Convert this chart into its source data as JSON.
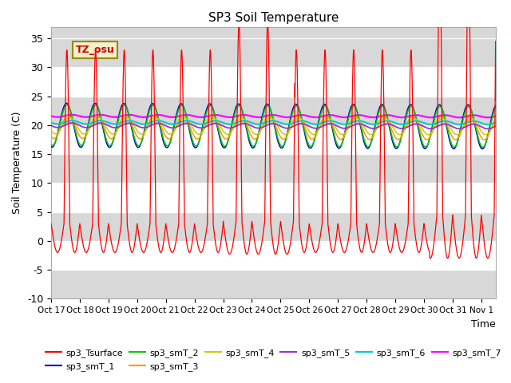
{
  "title": "SP3 Soil Temperature",
  "xlabel": "Time",
  "ylabel": "Soil Temperature (C)",
  "ylim": [
    -10,
    37
  ],
  "yticks": [
    -10,
    -5,
    0,
    5,
    10,
    15,
    20,
    25,
    30,
    35
  ],
  "xtick_labels": [
    "Oct 17",
    "Oct 18",
    "Oct 19",
    "Oct 20",
    "Oct 21",
    "Oct 22",
    "Oct 23",
    "Oct 24",
    "Oct 25",
    "Oct 26",
    "Oct 27",
    "Oct 28",
    "Oct 29",
    "Oct 30",
    "Oct 31",
    "Nov 1"
  ],
  "annotation_text": "TZ_osu",
  "series_colors": {
    "sp3_Tsurface": "#ff0000",
    "sp3_smT_1": "#0000cc",
    "sp3_smT_2": "#00cc00",
    "sp3_smT_3": "#ff9900",
    "sp3_smT_4": "#cccc00",
    "sp3_smT_5": "#9933cc",
    "sp3_smT_6": "#00cccc",
    "sp3_smT_7": "#ff00ff"
  }
}
